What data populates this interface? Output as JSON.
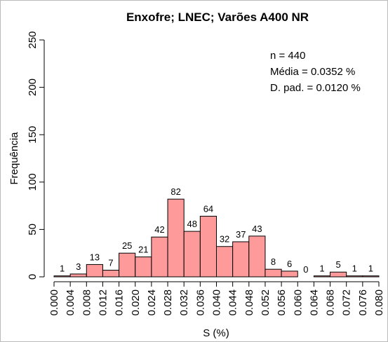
{
  "chart_data": {
    "type": "histogram",
    "title": "Enxofre; LNEC; Varões A400 NR",
    "xlabel": "S (%)",
    "ylabel": "Frequência",
    "annotations": [
      "n = 440",
      "Média = 0.0352 %",
      "D. pad. = 0.0120 %"
    ],
    "bins": [
      0,
      0.004,
      0.008,
      0.012,
      0.016,
      0.02,
      0.024,
      0.028,
      0.032,
      0.036,
      0.04,
      0.044,
      0.048,
      0.052,
      0.056,
      0.06,
      0.064,
      0.068,
      0.072,
      0.076,
      0.08
    ],
    "values": [
      1,
      3,
      13,
      7,
      25,
      21,
      42,
      82,
      48,
      64,
      32,
      37,
      43,
      8,
      6,
      0,
      1,
      5,
      1,
      1
    ],
    "color": "#ff9a9a",
    "xlim": [
      0,
      0.08
    ],
    "xticks": [
      {
        "value": 0,
        "label": "0.000"
      },
      {
        "value": 0.004,
        "label": "0.004"
      },
      {
        "value": 0.008,
        "label": "0.008"
      },
      {
        "value": 0.012,
        "label": "0.012"
      },
      {
        "value": 0.016,
        "label": "0.016"
      },
      {
        "value": 0.02,
        "label": "0.020"
      },
      {
        "value": 0.024,
        "label": "0.024"
      },
      {
        "value": 0.028,
        "label": "0.028"
      },
      {
        "value": 0.032,
        "label": "0.032"
      },
      {
        "value": 0.036,
        "label": "0.036"
      },
      {
        "value": 0.04,
        "label": "0.040"
      },
      {
        "value": 0.044,
        "label": "0.044"
      },
      {
        "value": 0.048,
        "label": "0.048"
      },
      {
        "value": 0.052,
        "label": "0.052"
      },
      {
        "value": 0.056,
        "label": "0.056"
      },
      {
        "value": 0.06,
        "label": "0.060"
      },
      {
        "value": 0.064,
        "label": "0.064"
      },
      {
        "value": 0.068,
        "label": "0.068"
      },
      {
        "value": 0.072,
        "label": "0.072"
      },
      {
        "value": 0.076,
        "label": "0.076"
      },
      {
        "value": 0.08,
        "label": "0.080"
      }
    ],
    "ylim": [
      0,
      250
    ],
    "yticks": [
      0,
      50,
      100,
      150,
      200,
      250
    ]
  }
}
